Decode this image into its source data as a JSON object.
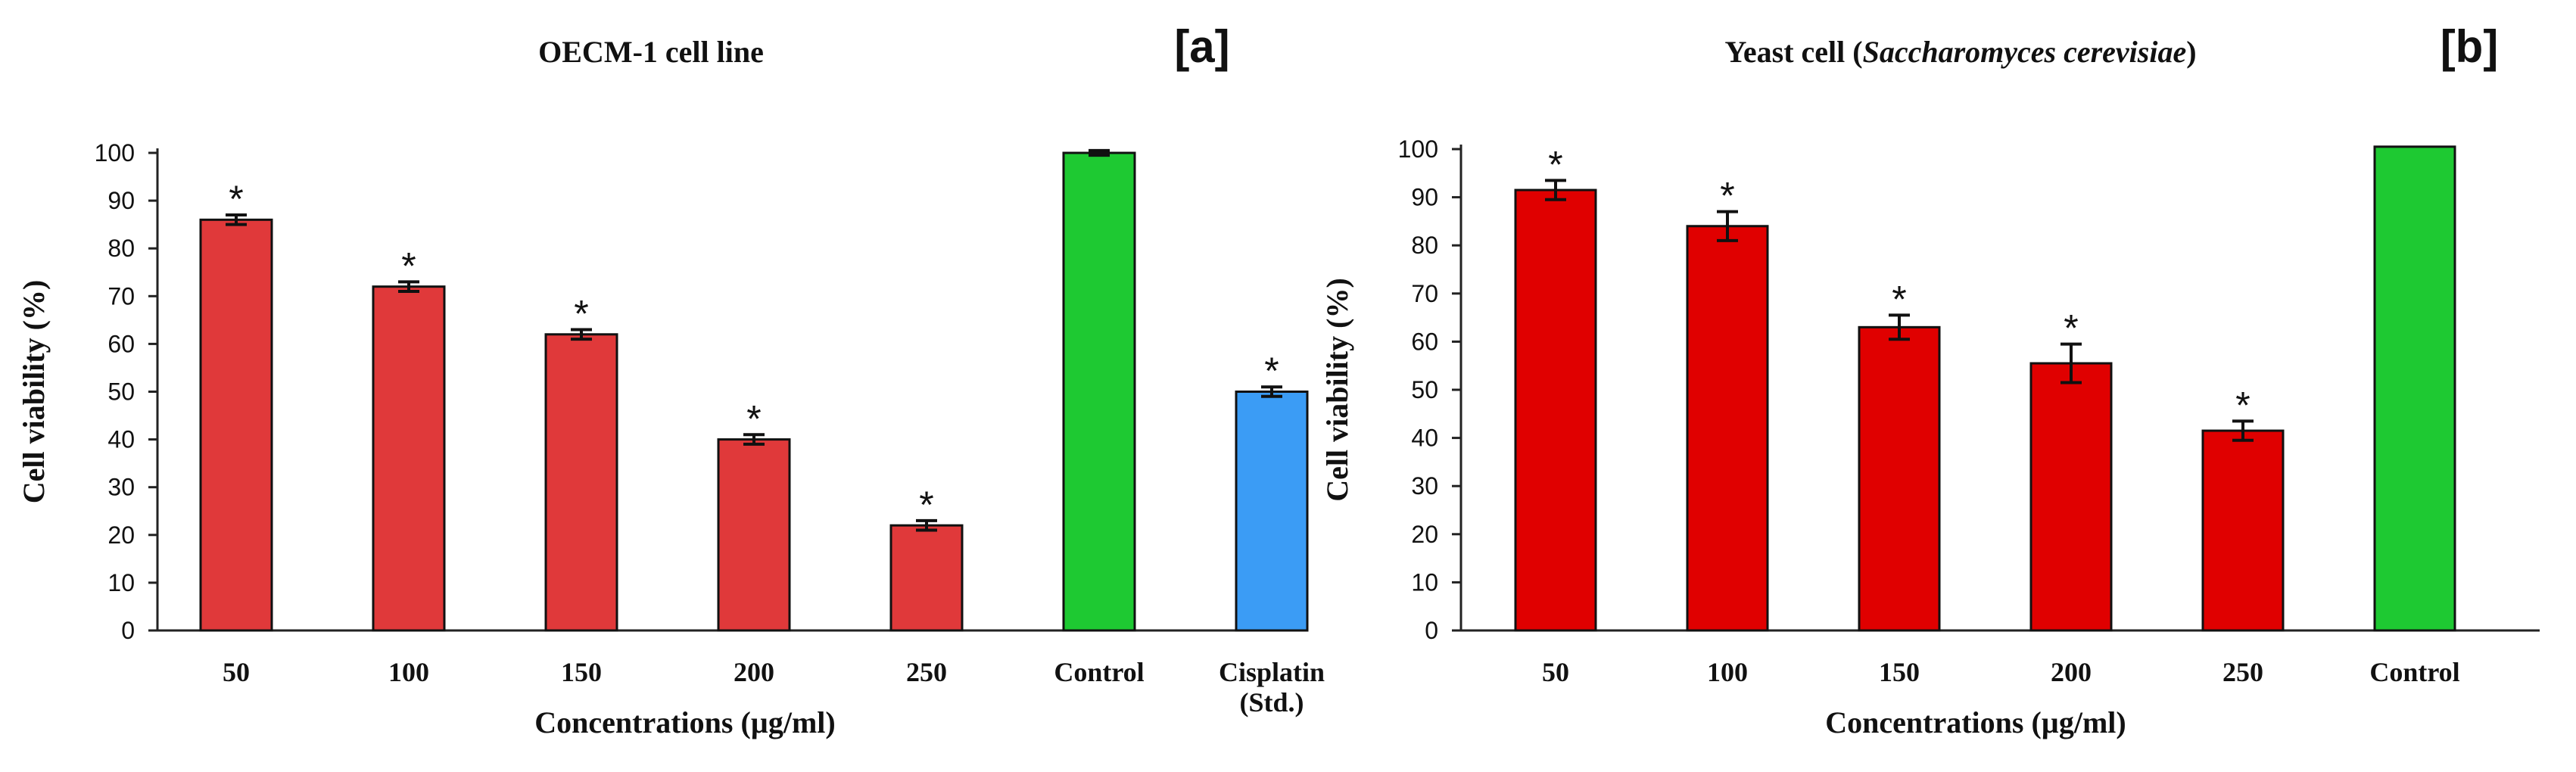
{
  "chart_data": [
    {
      "type": "bar",
      "panel_label": "[a]",
      "title": "OECM-1 cell line",
      "title_parts": [
        {
          "text": "OECM-1 cell line",
          "italic": false
        }
      ],
      "xlabel": "Concentrations (µg/ml)",
      "ylabel": "Cell viability (%)",
      "ylim": [
        0,
        100
      ],
      "yticks": [
        0,
        10,
        20,
        30,
        40,
        50,
        60,
        70,
        80,
        90,
        100
      ],
      "categories": [
        "50",
        "100",
        "150",
        "200",
        "250",
        "Control",
        "Cisplatin\n(Std.)"
      ],
      "values": [
        86,
        72,
        62,
        40,
        22,
        100,
        50
      ],
      "errors": [
        1,
        1,
        1,
        1,
        1,
        0.5,
        1
      ],
      "significance": [
        "*",
        "*",
        "*",
        "*",
        "*",
        "",
        "*"
      ],
      "colors": [
        "#e0393a",
        "#e0393a",
        "#e0393a",
        "#e0393a",
        "#e0393a",
        "#1ec932",
        "#3b9cf5"
      ]
    },
    {
      "type": "bar",
      "panel_label": "[b]",
      "title": "Yeast cell (Saccharomyces cerevisiae)",
      "title_parts": [
        {
          "text": "Yeast cell (",
          "italic": false
        },
        {
          "text": "Saccharomyces cerevisiae",
          "italic": true
        },
        {
          "text": ")",
          "italic": false
        }
      ],
      "xlabel": "Concentrations (µg/ml)",
      "ylabel": "Cell viability (%)",
      "ylim": [
        0,
        100
      ],
      "yticks": [
        0,
        10,
        20,
        30,
        40,
        50,
        60,
        70,
        80,
        90,
        100
      ],
      "categories": [
        "50",
        "100",
        "150",
        "200",
        "250",
        "Control"
      ],
      "values": [
        91.5,
        84,
        63,
        55.5,
        41.5,
        100.5
      ],
      "errors": [
        2,
        3,
        2.5,
        4,
        2,
        0
      ],
      "significance": [
        "*",
        "*",
        "*",
        "*",
        "*",
        ""
      ],
      "colors": [
        "#e00000",
        "#e00000",
        "#e00000",
        "#e00000",
        "#e00000",
        "#1ec932"
      ]
    }
  ]
}
